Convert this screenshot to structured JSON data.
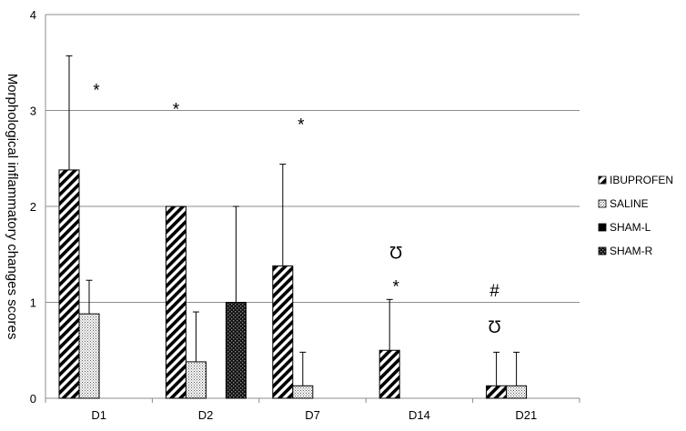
{
  "chart_data": {
    "type": "bar",
    "ylabel": "Morphological inflammatory changes scores",
    "ylim": [
      0,
      4
    ],
    "yticks": [
      0,
      1,
      2,
      3,
      4
    ],
    "grid": true,
    "legend_position": "right",
    "categories": [
      "D1",
      "D2",
      "D7",
      "D14",
      "D21"
    ],
    "series": [
      {
        "name": "IBUPROFEN",
        "pattern": "diagonal-stripes",
        "color": "#000000",
        "values": [
          2.38,
          2.0,
          1.38,
          0.5,
          0.13
        ],
        "errors": [
          1.19,
          null,
          1.06,
          0.53,
          0.35
        ]
      },
      {
        "name": "SALINE",
        "pattern": "dots",
        "color": "#000000",
        "values": [
          0.88,
          0.38,
          0.13,
          0,
          0.13
        ],
        "errors": [
          0.35,
          0.52,
          0.35,
          null,
          0.35
        ]
      },
      {
        "name": "SHAM-L",
        "pattern": "solid",
        "color": "#000000",
        "values": [
          0,
          0,
          0,
          0,
          0
        ],
        "errors": [
          null,
          null,
          null,
          null,
          null
        ]
      },
      {
        "name": "SHAM-R",
        "pattern": "checker",
        "color": "#000000",
        "values": [
          0,
          1.0,
          0,
          0,
          0
        ],
        "errors": [
          null,
          1.0,
          null,
          null,
          null
        ]
      }
    ],
    "annotations": [
      {
        "text": "*",
        "category": "D1",
        "y": 3.22
      },
      {
        "text": "*",
        "category": "D2",
        "y": 3.02
      },
      {
        "text": "*",
        "category": "D7",
        "y": 2.86
      },
      {
        "text": "Ʊ",
        "category": "D14",
        "y": 1.52
      },
      {
        "text": "*",
        "category": "D14",
        "y": 1.17
      },
      {
        "text": "#",
        "category": "D21",
        "y": 1.13
      },
      {
        "text": "Ʊ",
        "category": "D21",
        "y": 0.75
      }
    ]
  }
}
